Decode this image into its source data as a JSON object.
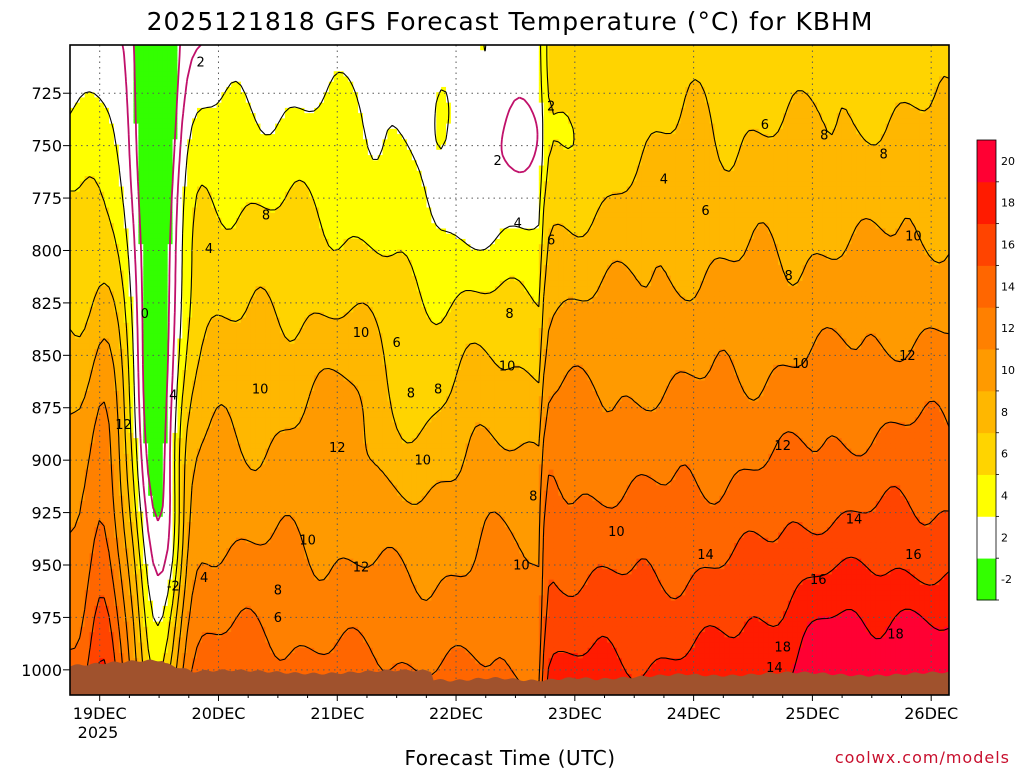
{
  "chart_data": {
    "type": "heatmap",
    "title": "2025121818 GFS Forecast Temperature (°C) for KBHM",
    "xlabel": "Forecast Time (UTC)",
    "ylabel": "",
    "x_ticks": [
      "19DEC",
      "20DEC",
      "21DEC",
      "22DEC",
      "23DEC",
      "24DEC",
      "25DEC",
      "26DEC"
    ],
    "x_year_label": "2025",
    "y_ticks": [
      725,
      750,
      775,
      800,
      825,
      850,
      875,
      900,
      925,
      950,
      975,
      1000
    ],
    "y_range": [
      1012,
      702
    ],
    "x_range": [
      -0.25,
      7.15
    ],
    "colorbar": {
      "levels": [
        -2,
        2,
        4,
        6,
        8,
        10,
        12,
        14,
        16,
        18,
        20
      ],
      "colors": [
        "#33ff00",
        "#ffffff",
        "#ffff00",
        "#ffd400",
        "#ffb700",
        "#ff9a00",
        "#ff8000",
        "#ff6600",
        "#ff4400",
        "#ff1b00",
        "#ff0033"
      ]
    },
    "contour_labels": [
      {
        "t": 0.85,
        "p": 710,
        "v": "2"
      },
      {
        "t": 3.8,
        "p": 731,
        "v": "2"
      },
      {
        "t": 3.35,
        "p": 757,
        "v": "2"
      },
      {
        "t": 0.2,
        "p": 883,
        "v": "12"
      },
      {
        "t": 0.38,
        "p": 830,
        "v": "0"
      },
      {
        "t": 0.62,
        "p": 869,
        "v": "4"
      },
      {
        "t": 0.62,
        "p": 960,
        "v": "-2"
      },
      {
        "t": 0.88,
        "p": 956,
        "v": "4"
      },
      {
        "t": 0.92,
        "p": 799,
        "v": "4"
      },
      {
        "t": 1.4,
        "p": 783,
        "v": "8"
      },
      {
        "t": 1.35,
        "p": 866,
        "v": "10"
      },
      {
        "t": 1.5,
        "p": 962,
        "v": "8"
      },
      {
        "t": 1.5,
        "p": 975,
        "v": "6"
      },
      {
        "t": 1.75,
        "p": 938,
        "v": "10"
      },
      {
        "t": 2.0,
        "p": 894,
        "v": "12"
      },
      {
        "t": 2.2,
        "p": 839,
        "v": "10"
      },
      {
        "t": 2.2,
        "p": 951,
        "v": "12"
      },
      {
        "t": 2.5,
        "p": 844,
        "v": "6"
      },
      {
        "t": 2.62,
        "p": 868,
        "v": "8"
      },
      {
        "t": 2.85,
        "p": 866,
        "v": "8"
      },
      {
        "t": 2.72,
        "p": 900,
        "v": "10"
      },
      {
        "t": 3.45,
        "p": 830,
        "v": "8"
      },
      {
        "t": 3.43,
        "p": 855,
        "v": "10"
      },
      {
        "t": 3.52,
        "p": 787,
        "v": "4"
      },
      {
        "t": 3.8,
        "p": 795,
        "v": "6"
      },
      {
        "t": 3.65,
        "p": 917,
        "v": "8"
      },
      {
        "t": 3.55,
        "p": 950,
        "v": "10"
      },
      {
        "t": 4.35,
        "p": 934,
        "v": "10"
      },
      {
        "t": 4.75,
        "p": 766,
        "v": "4"
      },
      {
        "t": 5.1,
        "p": 781,
        "v": "6"
      },
      {
        "t": 5.6,
        "p": 740,
        "v": "6"
      },
      {
        "t": 6.1,
        "p": 745,
        "v": "8"
      },
      {
        "t": 6.6,
        "p": 754,
        "v": "8"
      },
      {
        "t": 5.8,
        "p": 812,
        "v": "8"
      },
      {
        "t": 6.85,
        "p": 793,
        "v": "10"
      },
      {
        "t": 5.9,
        "p": 854,
        "v": "10"
      },
      {
        "t": 6.8,
        "p": 850,
        "v": "12"
      },
      {
        "t": 5.75,
        "p": 893,
        "v": "12"
      },
      {
        "t": 5.1,
        "p": 945,
        "v": "14"
      },
      {
        "t": 6.35,
        "p": 928,
        "v": "14"
      },
      {
        "t": 6.05,
        "p": 957,
        "v": "16"
      },
      {
        "t": 6.85,
        "p": 945,
        "v": "16"
      },
      {
        "t": 5.75,
        "p": 989,
        "v": "18"
      },
      {
        "t": 6.7,
        "p": 983,
        "v": "18"
      },
      {
        "t": 5.68,
        "p": 999,
        "v": "14"
      }
    ]
  },
  "credit": "coolwx.com/models"
}
